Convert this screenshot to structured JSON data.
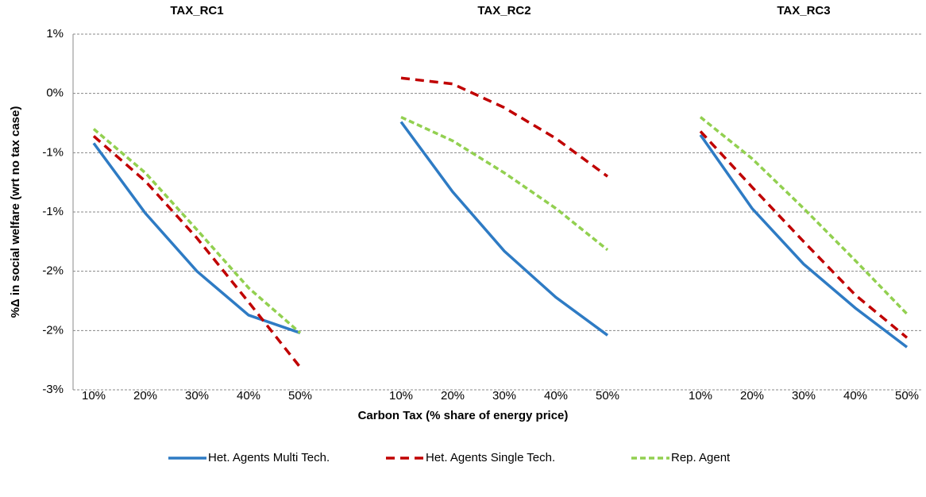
{
  "chart_data": {
    "type": "line",
    "ylabel": "%Δ in social welfare (wrt no tax case)",
    "xlabel": "Carbon Tax (% share of energy price)",
    "panels": [
      "TAX_RC1",
      "TAX_RC2",
      "TAX_RC3"
    ],
    "categories": [
      "10%",
      "20%",
      "30%",
      "40%",
      "50%"
    ],
    "ylim": [
      -2.5,
      0.5
    ],
    "yticks": [
      {
        "value": 0.5,
        "label": "1%"
      },
      {
        "value": 0,
        "label": "0%"
      },
      {
        "value": -0.5,
        "label": "-1%"
      },
      {
        "value": -1,
        "label": "-1%"
      },
      {
        "value": -1.5,
        "label": "-2%"
      },
      {
        "value": -2,
        "label": "-2%"
      },
      {
        "value": -2.5,
        "label": "-3%"
      }
    ],
    "grid": true,
    "series": [
      {
        "name": "Het. Agents Multi Tech.",
        "color": "#2e7bc4",
        "dash": "none",
        "values": [
          [
            -0.42,
            -1.01,
            -1.5,
            -1.87,
            -2.02
          ],
          [
            -0.24,
            -0.83,
            -1.33,
            -1.72,
            -2.04
          ],
          [
            -0.35,
            -0.97,
            -1.44,
            -1.81,
            -2.14
          ]
        ]
      },
      {
        "name": "Het. Agents Single Tech.",
        "color": "#c00000",
        "dash": "11 7",
        "values": [
          [
            -0.36,
            -0.74,
            -1.22,
            -1.76,
            -2.31
          ],
          [
            0.13,
            0.08,
            -0.12,
            -0.38,
            -0.7
          ],
          [
            -0.32,
            -0.79,
            -1.25,
            -1.7,
            -2.06
          ]
        ]
      },
      {
        "name": "Rep. Agent",
        "color": "#92d050",
        "dash": "7 4",
        "values": [
          [
            -0.3,
            -0.67,
            -1.15,
            -1.64,
            -2.02
          ],
          [
            -0.2,
            -0.4,
            -0.67,
            -0.97,
            -1.32
          ],
          [
            -0.2,
            -0.55,
            -0.97,
            -1.41,
            -1.86
          ]
        ]
      }
    ]
  }
}
